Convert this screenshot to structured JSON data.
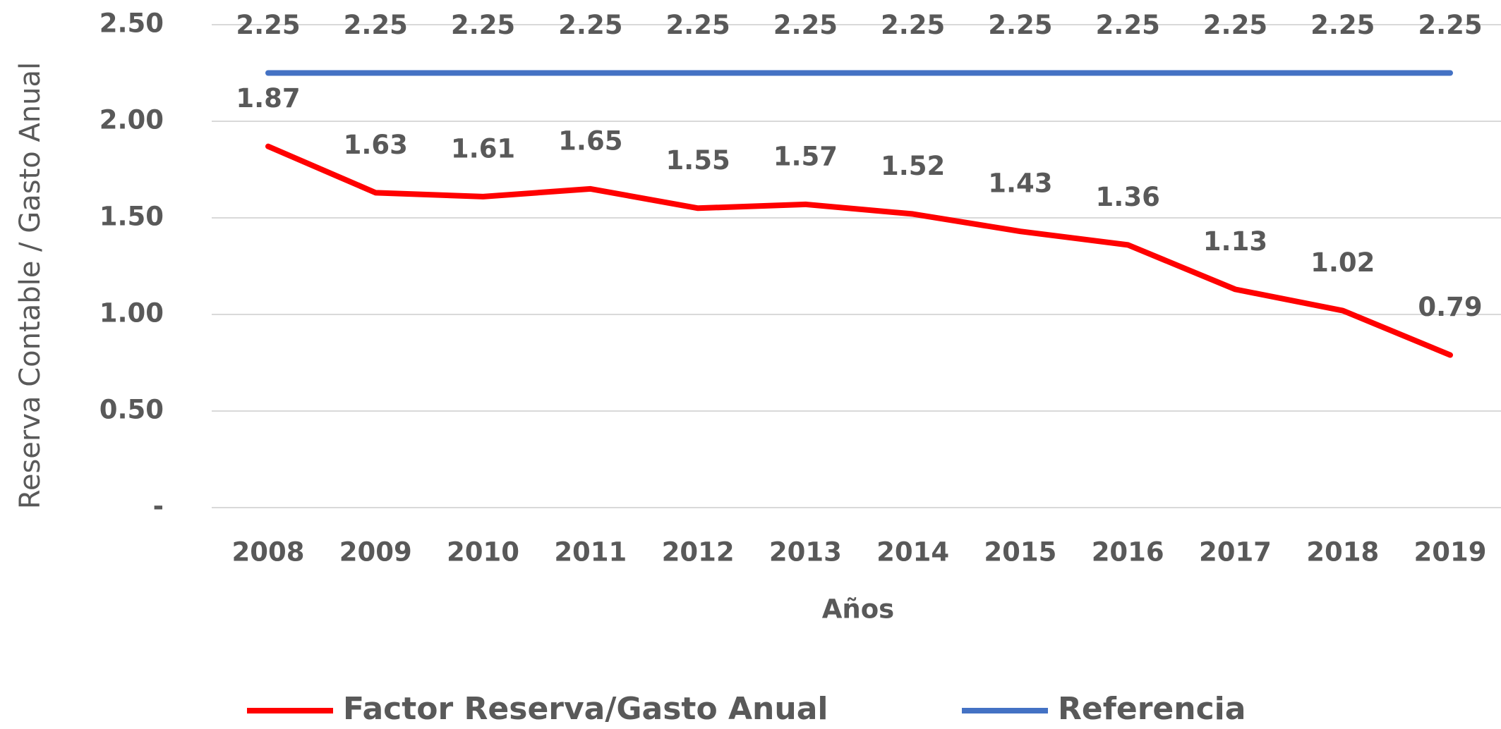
{
  "chart_data": {
    "type": "line",
    "y_label": "Reserva Contable / Gasto Anual",
    "x_label": "Años",
    "categories": [
      "2008",
      "2009",
      "2010",
      "2011",
      "2012",
      "2013",
      "2014",
      "2015",
      "2016",
      "2017",
      "2018",
      "2019"
    ],
    "series": [
      {
        "name": "Factor Reserva/Gasto Anual",
        "color": "#ff0000",
        "values": [
          1.87,
          1.63,
          1.61,
          1.65,
          1.55,
          1.57,
          1.52,
          1.43,
          1.36,
          1.13,
          1.02,
          0.79
        ]
      },
      {
        "name": "Referencia",
        "color": "#4472c4",
        "values": [
          2.25,
          2.25,
          2.25,
          2.25,
          2.25,
          2.25,
          2.25,
          2.25,
          2.25,
          2.25,
          2.25,
          2.25
        ]
      }
    ],
    "ylim": [
      0,
      2.5
    ],
    "yticks": [
      {
        "value": 0,
        "label": "-"
      },
      {
        "value": 0.5,
        "label": "0.50"
      },
      {
        "value": 1,
        "label": "1.00"
      },
      {
        "value": 1.5,
        "label": "1.50"
      },
      {
        "value": 2,
        "label": "2.00"
      },
      {
        "value": 2.5,
        "label": "2.50"
      }
    ],
    "grid": true,
    "legend": "bottom"
  }
}
